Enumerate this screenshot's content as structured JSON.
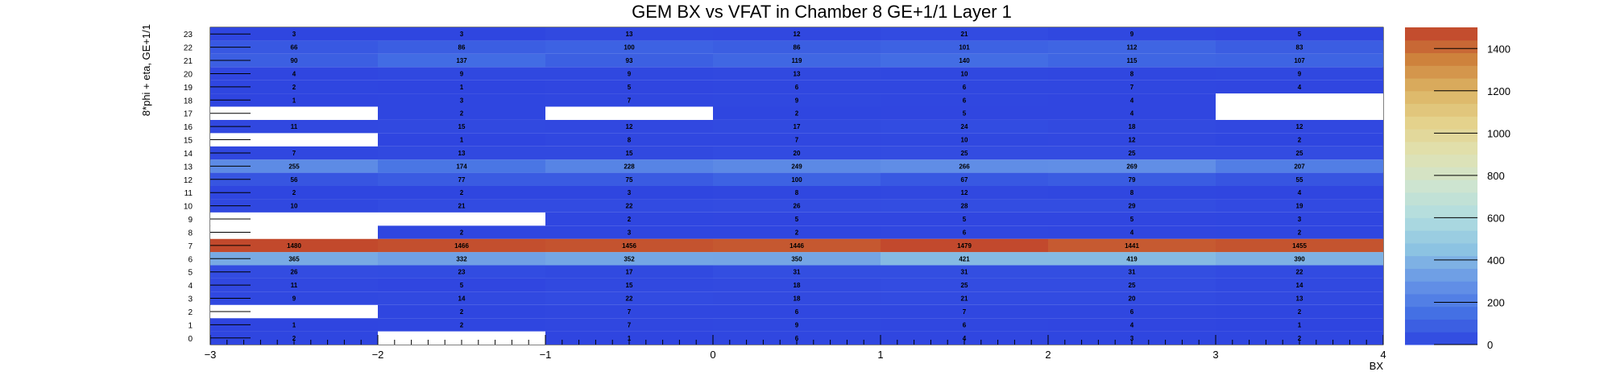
{
  "chart_data": {
    "type": "heatmap",
    "title": "GEM BX vs VFAT in Chamber 8 GE+1/1 Layer 1",
    "xlabel": "BX",
    "ylabel": "8*phi + eta, GE+1/1",
    "x_bins": [
      -3,
      -2,
      -1,
      0,
      1,
      2,
      3
    ],
    "x_bin_width": 1,
    "xlim": [
      -3,
      4
    ],
    "x_tick_labels": [
      "−3",
      "−2",
      "−1",
      "0",
      "1",
      "2",
      "3",
      "4"
    ],
    "y_bins": [
      0,
      1,
      2,
      3,
      4,
      5,
      6,
      7,
      8,
      9,
      10,
      11,
      12,
      13,
      14,
      15,
      16,
      17,
      18,
      19,
      20,
      21,
      22,
      23
    ],
    "ylim": [
      0,
      24
    ],
    "zlim": [
      0,
      1500
    ],
    "colorbar_ticks": [
      0,
      200,
      400,
      600,
      800,
      1000,
      1200,
      1400
    ],
    "values": [
      [
        2,
        0,
        1,
        6,
        4,
        3,
        2
      ],
      [
        1,
        2,
        7,
        9,
        6,
        4,
        1
      ],
      [
        0,
        2,
        7,
        6,
        7,
        6,
        2
      ],
      [
        9,
        14,
        22,
        18,
        21,
        20,
        13
      ],
      [
        11,
        5,
        15,
        18,
        25,
        25,
        14
      ],
      [
        26,
        23,
        17,
        31,
        31,
        31,
        22
      ],
      [
        365,
        332,
        352,
        350,
        421,
        419,
        390
      ],
      [
        1480,
        1466,
        1456,
        1446,
        1479,
        1441,
        1455
      ],
      [
        0,
        2,
        3,
        2,
        6,
        4,
        2
      ],
      [
        0,
        0,
        2,
        5,
        5,
        5,
        3
      ],
      [
        10,
        21,
        22,
        26,
        28,
        29,
        19
      ],
      [
        2,
        2,
        3,
        8,
        12,
        8,
        4
      ],
      [
        56,
        77,
        75,
        100,
        67,
        79,
        55
      ],
      [
        255,
        174,
        228,
        249,
        266,
        269,
        207
      ],
      [
        7,
        13,
        15,
        20,
        25,
        25,
        25
      ],
      [
        0,
        1,
        8,
        7,
        10,
        12,
        2
      ],
      [
        11,
        15,
        12,
        17,
        24,
        18,
        12
      ],
      [
        0,
        2,
        0,
        2,
        5,
        4,
        0
      ],
      [
        1,
        3,
        7,
        9,
        6,
        4,
        0
      ],
      [
        2,
        1,
        5,
        6,
        6,
        7,
        4
      ],
      [
        4,
        9,
        9,
        13,
        10,
        8,
        9
      ],
      [
        90,
        137,
        93,
        119,
        140,
        115,
        107
      ],
      [
        66,
        86,
        100,
        86,
        101,
        112,
        83
      ],
      [
        3,
        3,
        13,
        12,
        21,
        9,
        5
      ]
    ],
    "colors": {
      "palette_low": "#2f45e0",
      "palette_high": "#c0402a",
      "empty_cell": "#ffffff",
      "grid": false
    },
    "legend": "colorbar-right"
  }
}
